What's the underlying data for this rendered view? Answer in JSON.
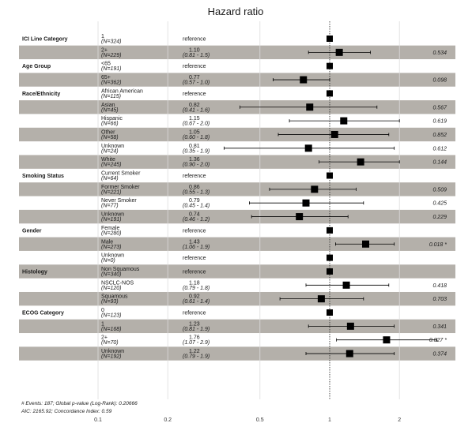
{
  "chart_data": {
    "type": "forest",
    "title": "Hazard ratio",
    "x_scale": "log",
    "xlim": [
      0.1,
      2.5
    ],
    "x_ticks": [
      "0.1",
      "0.2",
      "0.5",
      "1",
      "2"
    ],
    "reference_line": 1,
    "reference_text": "reference",
    "rows": [
      {
        "variable": "ICI Line Category",
        "level": "1",
        "n": "(N=324)",
        "reference": true
      },
      {
        "variable": "",
        "level": "2+",
        "n": "(N=229)",
        "est_text": "1.10",
        "ci_text": "(0.81 - 1.5)",
        "p": "0.534",
        "hr": 1.1,
        "lo": 0.81,
        "hi": 1.5
      },
      {
        "variable": "Age Group",
        "level": "<65",
        "n": "(N=191)",
        "reference": true
      },
      {
        "variable": "",
        "level": "65+",
        "n": "(N=362)",
        "est_text": "0.77",
        "ci_text": "(0.57 - 1.0)",
        "p": "0.098",
        "hr": 0.77,
        "lo": 0.57,
        "hi": 1.0
      },
      {
        "variable": "Race/Ethnicity",
        "level": "African American",
        "n": "(N=115)",
        "reference": true
      },
      {
        "variable": "",
        "level": "Asian",
        "n": "(N=45)",
        "est_text": "0.82",
        "ci_text": "(0.41 - 1.6)",
        "p": "0.567",
        "hr": 0.82,
        "lo": 0.41,
        "hi": 1.6
      },
      {
        "variable": "",
        "level": "Hispanic",
        "n": "(N=66)",
        "est_text": "1.15",
        "ci_text": "(0.67 - 2.0)",
        "p": "0.619",
        "hr": 1.15,
        "lo": 0.67,
        "hi": 2.0
      },
      {
        "variable": "",
        "level": "Other",
        "n": "(N=58)",
        "est_text": "1.05",
        "ci_text": "(0.60 - 1.8)",
        "p": "0.852",
        "hr": 1.05,
        "lo": 0.6,
        "hi": 1.8
      },
      {
        "variable": "",
        "level": "Unknown",
        "n": "(N=24)",
        "est_text": "0.81",
        "ci_text": "(0.35 - 1.9)",
        "p": "0.612",
        "hr": 0.81,
        "lo": 0.35,
        "hi": 1.9
      },
      {
        "variable": "",
        "level": "White",
        "n": "(N=245)",
        "est_text": "1.36",
        "ci_text": "(0.90 - 2.0)",
        "p": "0.144",
        "hr": 1.36,
        "lo": 0.9,
        "hi": 2.0
      },
      {
        "variable": "Smoking Status",
        "level": "Current Smoker",
        "n": "(N=64)",
        "reference": true
      },
      {
        "variable": "",
        "level": "Former Smoker",
        "n": "(N=221)",
        "est_text": "0.86",
        "ci_text": "(0.55 - 1.3)",
        "p": "0.509",
        "hr": 0.86,
        "lo": 0.55,
        "hi": 1.3
      },
      {
        "variable": "",
        "level": "Never Smoker",
        "n": "(N=77)",
        "est_text": "0.79",
        "ci_text": "(0.45 - 1.4)",
        "p": "0.425",
        "hr": 0.79,
        "lo": 0.45,
        "hi": 1.4
      },
      {
        "variable": "",
        "level": "Unknown",
        "n": "(N=191)",
        "est_text": "0.74",
        "ci_text": "(0.46 - 1.2)",
        "p": "0.229",
        "hr": 0.74,
        "lo": 0.46,
        "hi": 1.2
      },
      {
        "variable": "Gender",
        "level": "Female",
        "n": "(N=280)",
        "reference": true
      },
      {
        "variable": "",
        "level": "Male",
        "n": "(N=273)",
        "est_text": "1.43",
        "ci_text": "(1.06 - 1.9)",
        "p": "0.018 *",
        "hr": 1.43,
        "lo": 1.06,
        "hi": 1.9
      },
      {
        "variable": "",
        "level": "Unknown",
        "n": "(N=0)",
        "reference": true
      },
      {
        "variable": "Histology",
        "level": "Non Squamous",
        "n": "(N=340)",
        "reference": true
      },
      {
        "variable": "",
        "level": "NSCLC-NOS",
        "n": "(N=120)",
        "est_text": "1.18",
        "ci_text": "(0.79 - 1.8)",
        "p": "0.418",
        "hr": 1.18,
        "lo": 0.79,
        "hi": 1.8
      },
      {
        "variable": "",
        "level": "Squamous",
        "n": "(N=93)",
        "est_text": "0.92",
        "ci_text": "(0.61 - 1.4)",
        "p": "0.703",
        "hr": 0.92,
        "lo": 0.61,
        "hi": 1.4
      },
      {
        "variable": "ECOG Category",
        "level": "0",
        "n": "(N=123)",
        "reference": true
      },
      {
        "variable": "",
        "level": "1",
        "n": "(N=168)",
        "est_text": "1.23",
        "ci_text": "(0.81 - 1.9)",
        "p": "0.341",
        "hr": 1.23,
        "lo": 0.81,
        "hi": 1.9
      },
      {
        "variable": "",
        "level": "2+",
        "n": "(N=70)",
        "est_text": "1.76",
        "ci_text": "(1.07 - 2.9)",
        "p": "0.027 *",
        "hr": 1.76,
        "lo": 1.07,
        "hi": 2.9
      },
      {
        "variable": "",
        "level": "Unknown",
        "n": "(N=192)",
        "est_text": "1.22",
        "ci_text": "(0.79 - 1.9)",
        "p": "0.374",
        "hr": 1.22,
        "lo": 0.79,
        "hi": 1.9
      }
    ],
    "footnote_line1": "# Events: 187; Global p-value (Log-Rank): 0.20666",
    "footnote_line2": "AIC: 2165.92; Concordance Index: 0.59",
    "colors": {
      "stripe": "#b4b0aa",
      "grid": "#dcdcdc",
      "marker": "#000000",
      "text": "#1a1a1a"
    }
  }
}
